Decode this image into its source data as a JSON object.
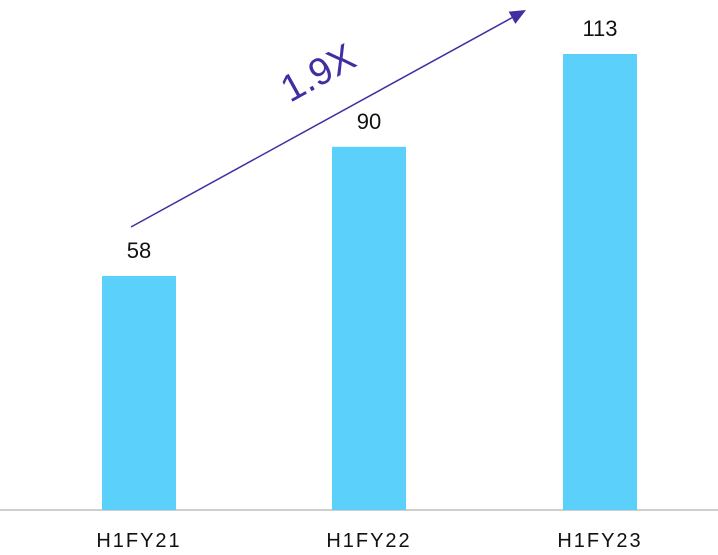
{
  "chart_data": {
    "type": "bar",
    "categories": [
      "H1FY21",
      "H1FY22",
      "H1FY23"
    ],
    "values": [
      58,
      90,
      113
    ],
    "title": "",
    "xlabel": "",
    "ylabel": "",
    "ylim": [
      0,
      113
    ],
    "grid": false,
    "data_labels": true,
    "annotation": {
      "text": "1.9X"
    }
  },
  "colors": {
    "bar": "#5bd0fb",
    "arrow": "#3f2fa0",
    "axis": "#bfbfbf",
    "text": "#111111"
  }
}
